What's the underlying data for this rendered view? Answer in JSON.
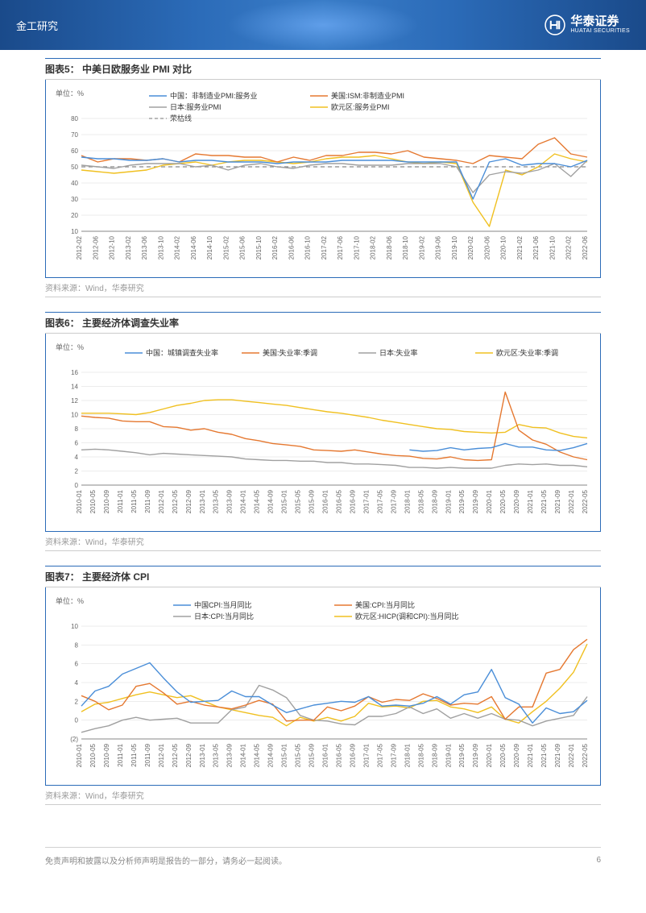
{
  "header": {
    "category": "金工研究",
    "brand_cn": "华泰证券",
    "brand_en": "HUATAI SECURITIES"
  },
  "footer": {
    "disclaimer": "免责声明和披露以及分析师声明是报告的一部分，请务必一起阅读。",
    "page": "6"
  },
  "colors": {
    "china": "#4a8ed8",
    "us": "#e57830",
    "japan": "#a0a0a0",
    "eu": "#f0c020",
    "boom": "#888888",
    "grid": "#d8d8d8",
    "border": "#2b6bb8",
    "bg": "#ffffff"
  },
  "chart5": {
    "title": "图表5：  中美日欧服务业 PMI 对比",
    "y_unit": "单位：%",
    "source": "资料来源：Wind，华泰研究",
    "type": "line",
    "ylim": [
      10,
      80
    ],
    "ytick_step": 10,
    "label_fontsize": 8,
    "x_labels": [
      "2012-02",
      "2012-06",
      "2012-10",
      "2013-02",
      "2013-06",
      "2013-10",
      "2014-02",
      "2014-06",
      "2014-10",
      "2015-02",
      "2015-06",
      "2015-10",
      "2016-02",
      "2016-06",
      "2016-10",
      "2017-02",
      "2017-06",
      "2017-10",
      "2018-02",
      "2018-06",
      "2018-10",
      "2019-02",
      "2019-06",
      "2019-10",
      "2020-02",
      "2020-06",
      "2020-10",
      "2021-02",
      "2021-06",
      "2021-10",
      "2022-02",
      "2022-06"
    ],
    "legend": {
      "china": "中国：非制造业PMI:服务业",
      "us": "美国:ISM:非制造业PMI",
      "japan": "日本:服务业PMI",
      "eu": "欧元区:服务业PMI",
      "boom": "荣枯线"
    },
    "series": {
      "china": [
        56,
        55,
        55,
        54,
        54,
        55,
        53,
        54,
        54,
        53,
        53,
        53,
        52,
        53,
        53,
        53,
        54,
        54,
        54,
        54,
        53,
        53,
        53,
        53,
        30,
        53,
        55,
        51,
        52,
        52,
        50,
        54
      ],
      "us": [
        57,
        53,
        55,
        55,
        54,
        55,
        53,
        58,
        57,
        57,
        56,
        56,
        53,
        56,
        54,
        57,
        57,
        59,
        59,
        58,
        60,
        56,
        55,
        54,
        52,
        57,
        56,
        55,
        64,
        68,
        58,
        56
      ],
      "japan": [
        51,
        50,
        49,
        51,
        52,
        52,
        52,
        50,
        51,
        48,
        51,
        52,
        50,
        49,
        51,
        52,
        52,
        51,
        51,
        51,
        52,
        52,
        52,
        50,
        34,
        45,
        47,
        46,
        48,
        52,
        44,
        54
      ],
      "eu": [
        48,
        47,
        46,
        47,
        48,
        51,
        52,
        53,
        51,
        53,
        54,
        54,
        53,
        52,
        53,
        55,
        56,
        56,
        57,
        55,
        53,
        52,
        53,
        52,
        28,
        13,
        48,
        45,
        50,
        58,
        55,
        53
      ],
      "boom_line": 50
    }
  },
  "chart6": {
    "title": "图表6：  主要经济体调查失业率",
    "y_unit": "单位：%",
    "source": "资料来源：Wind，华泰研究",
    "type": "line",
    "ylim": [
      0,
      16
    ],
    "ytick_step": 2,
    "label_fontsize": 8,
    "x_labels": [
      "2010-01",
      "2010-05",
      "2010-09",
      "2011-01",
      "2011-05",
      "2011-09",
      "2012-01",
      "2012-05",
      "2012-09",
      "2013-01",
      "2013-05",
      "2013-09",
      "2014-01",
      "2014-05",
      "2014-09",
      "2015-01",
      "2015-05",
      "2015-09",
      "2016-01",
      "2016-05",
      "2016-09",
      "2017-01",
      "2017-05",
      "2017-09",
      "2018-01",
      "2018-05",
      "2018-09",
      "2019-01",
      "2019-05",
      "2019-09",
      "2020-01",
      "2020-05",
      "2020-09",
      "2021-01",
      "2021-05",
      "2021-09",
      "2022-01",
      "2022-05"
    ],
    "legend": {
      "china": "中国：城镇调查失业率",
      "us": "美国:失业率:季调",
      "japan": "日本:失业率",
      "eu": "欧元区:失业率:季调"
    },
    "series": {
      "china": [
        null,
        null,
        null,
        null,
        null,
        null,
        null,
        null,
        null,
        null,
        null,
        null,
        null,
        null,
        null,
        null,
        null,
        null,
        null,
        null,
        null,
        null,
        null,
        null,
        5.0,
        4.8,
        4.9,
        5.3,
        5.0,
        5.2,
        5.3,
        5.9,
        5.4,
        5.4,
        5.0,
        4.9,
        5.3,
        5.9
      ],
      "us": [
        9.8,
        9.6,
        9.5,
        9.1,
        9.0,
        9.0,
        8.3,
        8.2,
        7.8,
        8.0,
        7.5,
        7.2,
        6.6,
        6.3,
        5.9,
        5.7,
        5.5,
        5.0,
        4.9,
        4.8,
        5.0,
        4.7,
        4.4,
        4.2,
        4.1,
        3.8,
        3.7,
        4.0,
        3.6,
        3.5,
        3.6,
        13.2,
        7.8,
        6.4,
        5.8,
        4.7,
        4.0,
        3.6
      ],
      "japan": [
        5.0,
        5.1,
        5.0,
        4.8,
        4.6,
        4.3,
        4.5,
        4.4,
        4.3,
        4.2,
        4.1,
        4.0,
        3.7,
        3.6,
        3.5,
        3.5,
        3.4,
        3.4,
        3.2,
        3.2,
        3.0,
        3.0,
        2.9,
        2.8,
        2.5,
        2.5,
        2.4,
        2.5,
        2.4,
        2.4,
        2.4,
        2.8,
        3.0,
        2.9,
        3.0,
        2.8,
        2.8,
        2.6
      ],
      "eu": [
        10.2,
        10.2,
        10.2,
        10.1,
        10.0,
        10.3,
        10.8,
        11.3,
        11.6,
        12.0,
        12.1,
        12.1,
        11.9,
        11.7,
        11.5,
        11.3,
        11.0,
        10.7,
        10.4,
        10.2,
        9.9,
        9.6,
        9.2,
        8.9,
        8.6,
        8.3,
        8.0,
        7.9,
        7.6,
        7.5,
        7.4,
        7.5,
        8.6,
        8.2,
        8.1,
        7.4,
        6.9,
        6.7
      ]
    }
  },
  "chart7": {
    "title": "图表7：  主要经济体 CPI",
    "y_unit": "单位：%",
    "source": "资料来源：Wind，华泰研究",
    "type": "line",
    "ylim": [
      -2,
      10
    ],
    "ytick_step": 2,
    "y_tick_labels_override": {
      "-2": "(2)"
    },
    "label_fontsize": 8,
    "x_labels": [
      "2010-01",
      "2010-05",
      "2010-09",
      "2011-01",
      "2011-05",
      "2011-09",
      "2012-01",
      "2012-05",
      "2012-09",
      "2013-01",
      "2013-05",
      "2013-09",
      "2014-01",
      "2014-05",
      "2014-09",
      "2015-01",
      "2015-05",
      "2015-09",
      "2016-01",
      "2016-05",
      "2016-09",
      "2017-01",
      "2017-05",
      "2017-09",
      "2018-01",
      "2018-05",
      "2018-09",
      "2019-01",
      "2019-05",
      "2019-09",
      "2020-01",
      "2020-05",
      "2020-09",
      "2021-01",
      "2021-05",
      "2021-09",
      "2022-01",
      "2022-05"
    ],
    "legend": {
      "china": "中国CPI:当月同比",
      "us": "美国:CPI:当月同比",
      "japan": "日本:CPI:当月同比",
      "eu": "欧元区:HICP(调和CPI):当月同比"
    },
    "series": {
      "china": [
        1.5,
        3.1,
        3.6,
        4.9,
        5.5,
        6.1,
        4.5,
        3.0,
        1.9,
        2.0,
        2.1,
        3.1,
        2.5,
        2.5,
        1.6,
        0.8,
        1.2,
        1.6,
        1.8,
        2.0,
        1.9,
        2.5,
        1.5,
        1.6,
        1.5,
        1.8,
        2.5,
        1.7,
        2.7,
        3.0,
        5.4,
        2.4,
        1.7,
        -0.3,
        1.3,
        0.7,
        0.9,
        2.1
      ],
      "us": [
        2.6,
        2.0,
        1.1,
        1.6,
        3.6,
        3.9,
        2.9,
        1.7,
        2.0,
        1.6,
        1.4,
        1.2,
        1.6,
        2.1,
        1.7,
        -0.1,
        0.0,
        0.0,
        1.4,
        1.0,
        1.5,
        2.5,
        1.9,
        2.2,
        2.1,
        2.8,
        2.3,
        1.6,
        1.8,
        1.7,
        2.5,
        0.1,
        1.4,
        1.4,
        5.0,
        5.4,
        7.5,
        8.6
      ],
      "japan": [
        -1.3,
        -0.9,
        -0.6,
        0.0,
        0.3,
        0.0,
        0.1,
        0.2,
        -0.3,
        -0.3,
        -0.3,
        1.1,
        1.4,
        3.7,
        3.2,
        2.4,
        0.5,
        0.0,
        -0.1,
        -0.4,
        -0.5,
        0.4,
        0.4,
        0.7,
        1.4,
        0.7,
        1.2,
        0.2,
        0.7,
        0.2,
        0.7,
        0.1,
        0.0,
        -0.6,
        -0.1,
        0.2,
        0.5,
        2.5
      ],
      "eu": [
        0.9,
        1.7,
        1.9,
        2.3,
        2.7,
        3.0,
        2.7,
        2.4,
        2.6,
        2.0,
        1.4,
        1.1,
        0.8,
        0.5,
        0.3,
        -0.6,
        0.3,
        -0.1,
        0.3,
        -0.1,
        0.4,
        1.8,
        1.4,
        1.5,
        1.3,
        2.0,
        2.1,
        1.4,
        1.2,
        0.8,
        1.4,
        0.1,
        -0.3,
        0.9,
        2.0,
        3.4,
        5.1,
        8.1
      ]
    }
  }
}
